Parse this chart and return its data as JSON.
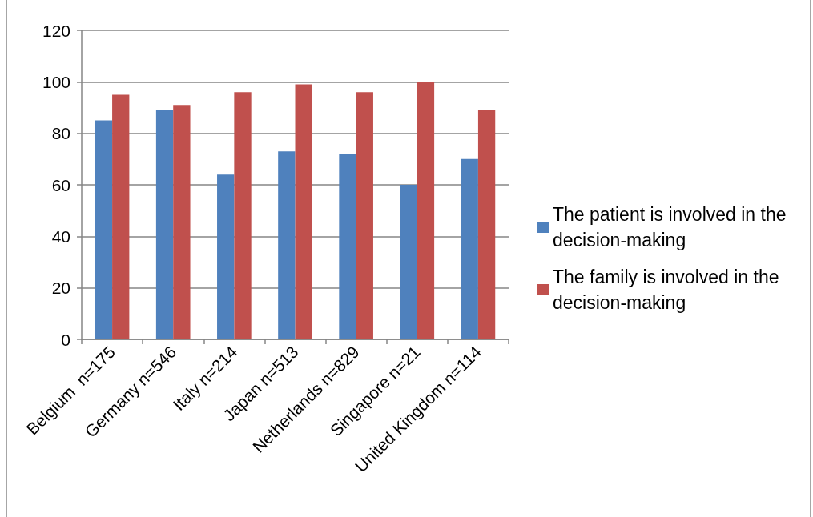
{
  "chart_data": {
    "type": "bar",
    "categories": [
      "Belgium  n=175",
      "Germany n=546",
      "Italy n=214",
      "Japan n=513",
      "Netherlands n=829",
      "Singapore n=21",
      "United Kingdom n=114"
    ],
    "series": [
      {
        "name": "The patient is involved in the decision-making",
        "color": "#4f81bd",
        "values": [
          85,
          89,
          64,
          73,
          72,
          60,
          70
        ]
      },
      {
        "name": "The family is involved in the decision-making",
        "color": "#c0504d",
        "values": [
          95,
          91,
          96,
          99,
          96,
          100,
          89
        ]
      }
    ],
    "ylim": [
      0,
      120
    ],
    "yticks": [
      0,
      20,
      40,
      60,
      80,
      100,
      120
    ],
    "grid": "y",
    "legend": "right"
  }
}
